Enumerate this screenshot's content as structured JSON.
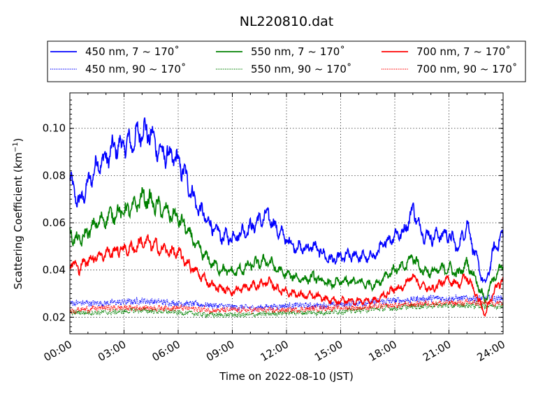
{
  "chart_data": {
    "type": "line",
    "title": "NL220810.dat",
    "xlabel": "Time on 2022-08-10 (JST)",
    "ylabel_main": "Scattering Coefficient (km",
    "ylabel_sup": "−1",
    "ylabel_end": ")",
    "xlim": [
      0,
      24
    ],
    "ylim": [
      0.013,
      0.115
    ],
    "x_ticks": [
      0,
      3,
      6,
      9,
      12,
      15,
      18,
      21,
      24
    ],
    "x_tick_labels": [
      "00:00",
      "03:00",
      "06:00",
      "09:00",
      "12:00",
      "15:00",
      "18:00",
      "21:00",
      "24:00"
    ],
    "y_ticks": [
      0.02,
      0.04,
      0.06,
      0.08,
      0.1
    ],
    "y_tick_labels": [
      "0.02",
      "0.04",
      "0.06",
      "0.08",
      "0.10"
    ],
    "grid": true,
    "legend_position": "top-center",
    "series": [
      {
        "name": "450 nm, 7 ~ 170˚",
        "color": "#0000ff",
        "style": "solid",
        "x": [
          0,
          0.5,
          1,
          1.5,
          2,
          2.5,
          3,
          3.5,
          4,
          4.5,
          5,
          5.5,
          6,
          6.5,
          7,
          7.5,
          8,
          8.5,
          9,
          9.5,
          10,
          10.5,
          11,
          11.5,
          12,
          12.5,
          13,
          13.5,
          14,
          14.5,
          15,
          15.5,
          16,
          16.5,
          17,
          17.5,
          18,
          18.5,
          19,
          19.5,
          20,
          20.5,
          21,
          21.5,
          22,
          22.5,
          23,
          23.5,
          24
        ],
        "y": [
          0.078,
          0.068,
          0.076,
          0.085,
          0.087,
          0.092,
          0.093,
          0.094,
          0.1,
          0.097,
          0.09,
          0.088,
          0.086,
          0.078,
          0.068,
          0.062,
          0.057,
          0.054,
          0.054,
          0.056,
          0.058,
          0.061,
          0.063,
          0.057,
          0.053,
          0.05,
          0.049,
          0.05,
          0.047,
          0.044,
          0.045,
          0.046,
          0.046,
          0.045,
          0.047,
          0.052,
          0.055,
          0.056,
          0.066,
          0.056,
          0.054,
          0.055,
          0.055,
          0.049,
          0.06,
          0.045,
          0.033,
          0.049,
          0.055
        ]
      },
      {
        "name": "450 nm, 90 ~ 170˚",
        "color": "#0000ff",
        "style": "dotted",
        "x": [
          0,
          2,
          4,
          6,
          8,
          10,
          12,
          14,
          16,
          18,
          20,
          22,
          24
        ],
        "y": [
          0.026,
          0.026,
          0.027,
          0.026,
          0.025,
          0.024,
          0.025,
          0.025,
          0.026,
          0.027,
          0.028,
          0.028,
          0.028
        ]
      },
      {
        "name": "550 nm, 7 ~ 170˚",
        "color": "#008000",
        "style": "solid",
        "x": [
          0,
          0.5,
          1,
          1.5,
          2,
          2.5,
          3,
          3.5,
          4,
          4.5,
          5,
          5.5,
          6,
          6.5,
          7,
          7.5,
          8,
          8.5,
          9,
          9.5,
          10,
          10.5,
          11,
          11.5,
          12,
          12.5,
          13,
          13.5,
          14,
          14.5,
          15,
          15.5,
          16,
          16.5,
          17,
          17.5,
          18,
          18.5,
          19,
          19.5,
          20,
          20.5,
          21,
          21.5,
          22,
          22.5,
          23,
          23.5,
          24
        ],
        "y": [
          0.055,
          0.052,
          0.056,
          0.06,
          0.062,
          0.064,
          0.065,
          0.066,
          0.071,
          0.069,
          0.066,
          0.064,
          0.062,
          0.057,
          0.05,
          0.046,
          0.042,
          0.04,
          0.039,
          0.04,
          0.042,
          0.043,
          0.044,
          0.04,
          0.038,
          0.037,
          0.036,
          0.037,
          0.035,
          0.034,
          0.035,
          0.035,
          0.035,
          0.034,
          0.034,
          0.038,
          0.04,
          0.041,
          0.046,
          0.04,
          0.039,
          0.04,
          0.041,
          0.038,
          0.043,
          0.036,
          0.027,
          0.037,
          0.042
        ]
      },
      {
        "name": "550 nm, 90 ~ 170˚",
        "color": "#008000",
        "style": "dotted",
        "x": [
          0,
          2,
          4,
          6,
          8,
          10,
          12,
          14,
          16,
          18,
          20,
          22,
          24
        ],
        "y": [
          0.022,
          0.022,
          0.023,
          0.022,
          0.021,
          0.021,
          0.022,
          0.022,
          0.023,
          0.024,
          0.025,
          0.025,
          0.025
        ]
      },
      {
        "name": "700 nm, 7 ~ 170˚",
        "color": "#ff0000",
        "style": "solid",
        "x": [
          0,
          0.5,
          1,
          1.5,
          2,
          2.5,
          3,
          3.5,
          4,
          4.5,
          5,
          5.5,
          6,
          6.5,
          7,
          7.5,
          8,
          8.5,
          9,
          9.5,
          10,
          10.5,
          11,
          11.5,
          12,
          12.5,
          13,
          13.5,
          14,
          14.5,
          15,
          15.5,
          16,
          16.5,
          17,
          17.5,
          18,
          18.5,
          19,
          19.5,
          20,
          20.5,
          21,
          21.5,
          22,
          22.5,
          23,
          23.5,
          24
        ],
        "y": [
          0.043,
          0.041,
          0.044,
          0.046,
          0.047,
          0.048,
          0.049,
          0.049,
          0.052,
          0.051,
          0.049,
          0.048,
          0.047,
          0.043,
          0.039,
          0.036,
          0.033,
          0.032,
          0.031,
          0.032,
          0.033,
          0.034,
          0.035,
          0.032,
          0.031,
          0.03,
          0.029,
          0.029,
          0.028,
          0.027,
          0.027,
          0.027,
          0.027,
          0.027,
          0.027,
          0.03,
          0.032,
          0.033,
          0.038,
          0.033,
          0.032,
          0.034,
          0.036,
          0.034,
          0.037,
          0.03,
          0.021,
          0.031,
          0.036
        ]
      },
      {
        "name": "700 nm, 90 ~ 170˚",
        "color": "#ff0000",
        "style": "dotted",
        "x": [
          0,
          2,
          4,
          6,
          8,
          10,
          12,
          14,
          16,
          18,
          20,
          22,
          24
        ],
        "y": [
          0.023,
          0.024,
          0.024,
          0.024,
          0.023,
          0.023,
          0.023,
          0.024,
          0.024,
          0.025,
          0.026,
          0.026,
          0.026
        ]
      }
    ]
  }
}
